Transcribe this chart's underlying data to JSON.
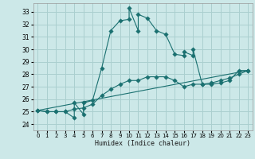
{
  "xlabel": "Humidex (Indice chaleur)",
  "bg_color": "#cce8e8",
  "grid_color": "#aacfcf",
  "line_color": "#1a7070",
  "xlim": [
    -0.5,
    23.5
  ],
  "ylim": [
    23.5,
    33.7
  ],
  "yticks": [
    24,
    25,
    26,
    27,
    28,
    29,
    30,
    31,
    32,
    33
  ],
  "xticks": [
    0,
    1,
    2,
    3,
    4,
    5,
    6,
    7,
    8,
    9,
    10,
    11,
    12,
    13,
    14,
    15,
    16,
    17,
    18,
    19,
    20,
    21,
    22,
    23
  ],
  "series1_x": [
    0,
    1,
    2,
    3,
    4,
    4,
    5,
    5,
    6,
    7,
    8,
    9,
    10,
    10,
    11,
    11,
    12,
    13,
    14,
    15,
    16,
    16,
    17,
    17,
    18,
    19,
    20,
    21,
    22,
    23
  ],
  "series1_y": [
    25.1,
    25.0,
    25.0,
    25.0,
    24.5,
    25.7,
    24.8,
    25.7,
    25.9,
    28.5,
    31.5,
    32.3,
    32.4,
    33.3,
    31.5,
    32.8,
    32.5,
    31.5,
    31.2,
    29.6,
    29.5,
    29.8,
    29.5,
    30.0,
    27.2,
    27.2,
    27.3,
    27.5,
    28.3,
    28.3
  ],
  "series2_x": [
    0,
    1,
    2,
    3,
    4,
    5,
    6,
    7,
    8,
    9,
    10,
    11,
    12,
    13,
    14,
    15,
    16,
    17,
    18,
    19,
    20,
    21,
    22,
    23
  ],
  "series2_y": [
    25.1,
    25.0,
    25.0,
    25.0,
    25.2,
    25.3,
    25.6,
    26.3,
    26.8,
    27.2,
    27.5,
    27.5,
    27.8,
    27.8,
    27.8,
    27.5,
    27.0,
    27.2,
    27.2,
    27.3,
    27.5,
    27.7,
    28.0,
    28.3
  ],
  "series3_x": [
    0,
    23
  ],
  "series3_y": [
    25.1,
    28.3
  ],
  "marker_size": 2.8,
  "lw": 0.8
}
